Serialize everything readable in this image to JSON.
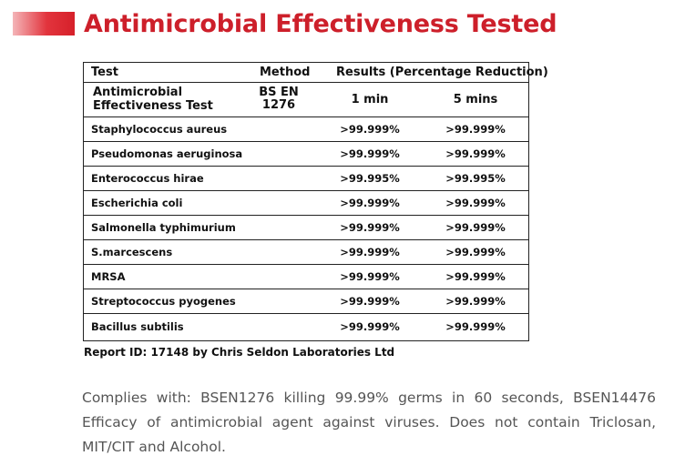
{
  "title": "Antimicrobial Effectiveness Tested",
  "accent_color": "#cd1f2a",
  "table": {
    "headers": {
      "test": "Test",
      "method": "Method",
      "results": "Results (Percentage Reduction)"
    },
    "subheader": {
      "test_line1": "Antimicrobial",
      "test_line2": "Effectiveness Test",
      "method_line1": "BS EN",
      "method_line2": "1276",
      "col_1min": "1 min",
      "col_5min": "5 mins"
    },
    "rows": [
      {
        "organism": "Staphylococcus aureus",
        "min1": ">99.999%",
        "min5": ">99.999%"
      },
      {
        "organism": "Pseudomonas aeruginosa",
        "min1": ">99.999%",
        "min5": ">99.999%"
      },
      {
        "organism": "Enterococcus hirae",
        "min1": ">99.995%",
        "min5": ">99.995%"
      },
      {
        "organism": "Escherichia coli",
        "min1": ">99.999%",
        "min5": ">99.999%"
      },
      {
        "organism": "Salmonella typhimurium",
        "min1": ">99.999%",
        "min5": ">99.999%"
      },
      {
        "organism": "S.marcescens",
        "min1": ">99.999%",
        "min5": ">99.999%"
      },
      {
        "organism": "MRSA",
        "min1": ">99.999%",
        "min5": ">99.999%"
      },
      {
        "organism": "Streptococcus pyogenes",
        "min1": ">99.999%",
        "min5": ">99.999%"
      },
      {
        "organism": "Bacillus subtilis",
        "min1": ">99.999%",
        "min5": ">99.999%"
      }
    ]
  },
  "report_id": "Report ID: 17148 by Chris Seldon Laboratories Ltd",
  "complies_text": "Complies with: BSEN1276 killing 99.99% germs in 60 seconds, BSEN14476 Efficacy of antimicrobial agent against viruses. Does not contain Triclosan, MIT/CIT and Alcohol."
}
